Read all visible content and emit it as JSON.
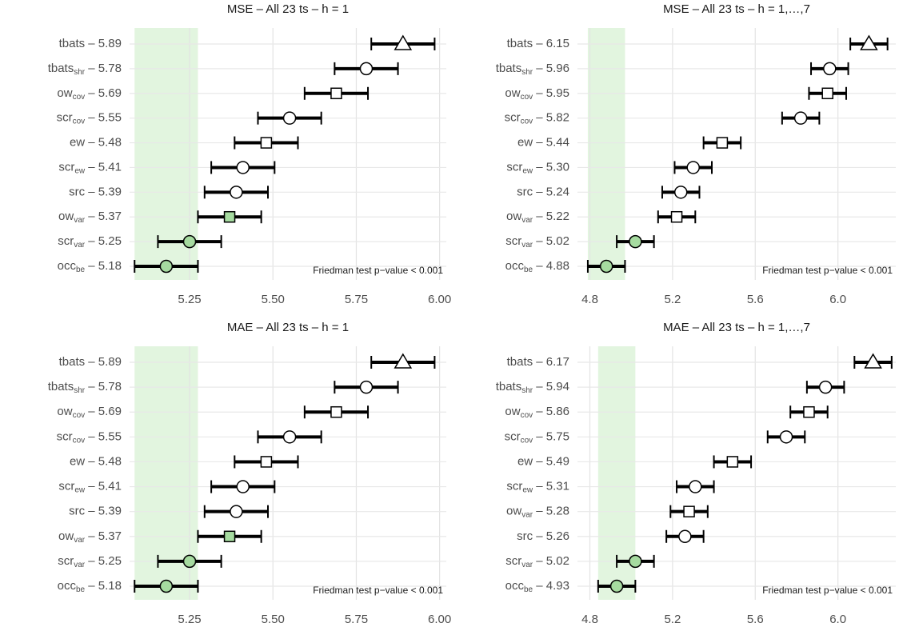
{
  "chart_data": [
    {
      "type": "errorbar",
      "title": "MSE – All 23 ts – h = 1",
      "categories": [
        {
          "name": "tbats",
          "suffix": " – 5.89"
        },
        {
          "name": "tbats",
          "sub": "shr",
          "suffix": " – 5.78"
        },
        {
          "name": "ow",
          "sub": "cov",
          "suffix": " – 5.69"
        },
        {
          "name": "scr",
          "sub": "cov",
          "suffix": " – 5.55"
        },
        {
          "name": "ew",
          "suffix": " – 5.48"
        },
        {
          "name": "scr",
          "sub": "ew",
          "suffix": " – 5.41"
        },
        {
          "name": "src",
          "suffix": " – 5.39"
        },
        {
          "name": "ow",
          "sub": "var",
          "suffix": " – 5.37"
        },
        {
          "name": "scr",
          "sub": "var",
          "suffix": " – 5.25"
        },
        {
          "name": "occ",
          "sub": "be",
          "suffix": " – 5.18"
        }
      ],
      "values": [
        5.89,
        5.78,
        5.69,
        5.55,
        5.48,
        5.41,
        5.39,
        5.37,
        5.25,
        5.18
      ],
      "errors": [
        0.095,
        0.095,
        0.095,
        0.095,
        0.095,
        0.095,
        0.095,
        0.095,
        0.095,
        0.095
      ],
      "markers": [
        "triangle",
        "circle",
        "square",
        "circle",
        "square",
        "circle",
        "circle",
        "square",
        "circle",
        "circle"
      ],
      "marker_colors": [
        "#ffffff",
        "#ffffff",
        "#ffffff",
        "#ffffff",
        "#ffffff",
        "#ffffff",
        "#ffffff",
        "#a6dba0",
        "#a6dba0",
        "#a6dba0"
      ],
      "band_color": "#e2f5df",
      "grid": true,
      "xlim": [
        5.07,
        6.02
      ],
      "xticks": [
        5.25,
        {
          "value": 5.5,
          "label": "5.50"
        },
        5.75,
        {
          "value": 6,
          "label": "6.00"
        }
      ],
      "annotation": "Friedman test p−value  < 0.001"
    },
    {
      "type": "errorbar",
      "title": "MSE – All 23 ts – h = 1,…,7",
      "categories": [
        {
          "name": "tbats",
          "suffix": " – 6.15"
        },
        {
          "name": "tbats",
          "sub": "shr",
          "suffix": " – 5.96"
        },
        {
          "name": "ow",
          "sub": "cov",
          "suffix": " – 5.95"
        },
        {
          "name": "scr",
          "sub": "cov",
          "suffix": " – 5.82"
        },
        {
          "name": "ew",
          "suffix": " – 5.44"
        },
        {
          "name": "scr",
          "sub": "ew",
          "suffix": " – 5.30"
        },
        {
          "name": "src",
          "suffix": " – 5.24"
        },
        {
          "name": "ow",
          "sub": "var",
          "suffix": " – 5.22"
        },
        {
          "name": "scr",
          "sub": "var",
          "suffix": " – 5.02"
        },
        {
          "name": "occ",
          "sub": "be",
          "suffix": " – 4.88"
        }
      ],
      "values": [
        6.15,
        5.96,
        5.95,
        5.82,
        5.44,
        5.3,
        5.24,
        5.22,
        5.02,
        4.88
      ],
      "errors": [
        0.09,
        0.09,
        0.09,
        0.09,
        0.09,
        0.09,
        0.09,
        0.09,
        0.09,
        0.09
      ],
      "markers": [
        "triangle",
        "circle",
        "square",
        "circle",
        "square",
        "circle",
        "circle",
        "square",
        "circle",
        "circle"
      ],
      "marker_colors": [
        "#ffffff",
        "#ffffff",
        "#ffffff",
        "#ffffff",
        "#ffffff",
        "#ffffff",
        "#ffffff",
        "#ffffff",
        "#a6dba0",
        "#a6dba0"
      ],
      "band_color": "#e2f5df",
      "grid": true,
      "xlim": [
        4.74,
        6.28
      ],
      "xticks": [
        4.8,
        5.2,
        5.6,
        {
          "value": 6,
          "label": "6.0"
        }
      ],
      "annotation": "Friedman test p−value  < 0.001"
    },
    {
      "type": "errorbar",
      "title": "MAE – All 23 ts – h = 1",
      "categories": [
        {
          "name": "tbats",
          "suffix": " – 5.89"
        },
        {
          "name": "tbats",
          "sub": "shr",
          "suffix": " – 5.78"
        },
        {
          "name": "ow",
          "sub": "cov",
          "suffix": " – 5.69"
        },
        {
          "name": "scr",
          "sub": "cov",
          "suffix": " – 5.55"
        },
        {
          "name": "ew",
          "suffix": " – 5.48"
        },
        {
          "name": "scr",
          "sub": "ew",
          "suffix": " – 5.41"
        },
        {
          "name": "src",
          "suffix": " – 5.39"
        },
        {
          "name": "ow",
          "sub": "var",
          "suffix": " – 5.37"
        },
        {
          "name": "scr",
          "sub": "var",
          "suffix": " – 5.25"
        },
        {
          "name": "occ",
          "sub": "be",
          "suffix": " – 5.18"
        }
      ],
      "values": [
        5.89,
        5.78,
        5.69,
        5.55,
        5.48,
        5.41,
        5.39,
        5.37,
        5.25,
        5.18
      ],
      "errors": [
        0.095,
        0.095,
        0.095,
        0.095,
        0.095,
        0.095,
        0.095,
        0.095,
        0.095,
        0.095
      ],
      "markers": [
        "triangle",
        "circle",
        "square",
        "circle",
        "square",
        "circle",
        "circle",
        "square",
        "circle",
        "circle"
      ],
      "marker_colors": [
        "#ffffff",
        "#ffffff",
        "#ffffff",
        "#ffffff",
        "#ffffff",
        "#ffffff",
        "#ffffff",
        "#a6dba0",
        "#a6dba0",
        "#a6dba0"
      ],
      "band_color": "#e2f5df",
      "grid": true,
      "xlim": [
        5.07,
        6.02
      ],
      "xticks": [
        5.25,
        {
          "value": 5.5,
          "label": "5.50"
        },
        5.75,
        {
          "value": 6,
          "label": "6.00"
        }
      ],
      "annotation": "Friedman test p−value  < 0.001"
    },
    {
      "type": "errorbar",
      "title": "MAE – All 23 ts – h = 1,…,7",
      "categories": [
        {
          "name": "tbats",
          "suffix": " – 6.17"
        },
        {
          "name": "tbats",
          "sub": "shr",
          "suffix": " – 5.94"
        },
        {
          "name": "ow",
          "sub": "cov",
          "suffix": " – 5.86"
        },
        {
          "name": "scr",
          "sub": "cov",
          "suffix": " – 5.75"
        },
        {
          "name": "ew",
          "suffix": " – 5.49"
        },
        {
          "name": "scr",
          "sub": "ew",
          "suffix": " – 5.31"
        },
        {
          "name": "ow",
          "sub": "var",
          "suffix": " – 5.28"
        },
        {
          "name": "src",
          "suffix": " – 5.26"
        },
        {
          "name": "scr",
          "sub": "var",
          "suffix": " – 5.02"
        },
        {
          "name": "occ",
          "sub": "be",
          "suffix": " – 4.93"
        }
      ],
      "values": [
        6.17,
        5.94,
        5.86,
        5.75,
        5.49,
        5.31,
        5.28,
        5.26,
        5.02,
        4.93
      ],
      "errors": [
        0.09,
        0.09,
        0.09,
        0.09,
        0.09,
        0.09,
        0.09,
        0.09,
        0.09,
        0.09
      ],
      "markers": [
        "triangle",
        "circle",
        "square",
        "circle",
        "square",
        "circle",
        "square",
        "circle",
        "circle",
        "circle"
      ],
      "marker_colors": [
        "#ffffff",
        "#ffffff",
        "#ffffff",
        "#ffffff",
        "#ffffff",
        "#ffffff",
        "#ffffff",
        "#ffffff",
        "#a6dba0",
        "#a6dba0"
      ],
      "band_color": "#e2f5df",
      "grid": true,
      "xlim": [
        4.74,
        6.28
      ],
      "xticks": [
        4.8,
        5.2,
        5.6,
        {
          "value": 6,
          "label": "6.0"
        }
      ],
      "annotation": "Friedman test p−value  < 0.001"
    }
  ]
}
